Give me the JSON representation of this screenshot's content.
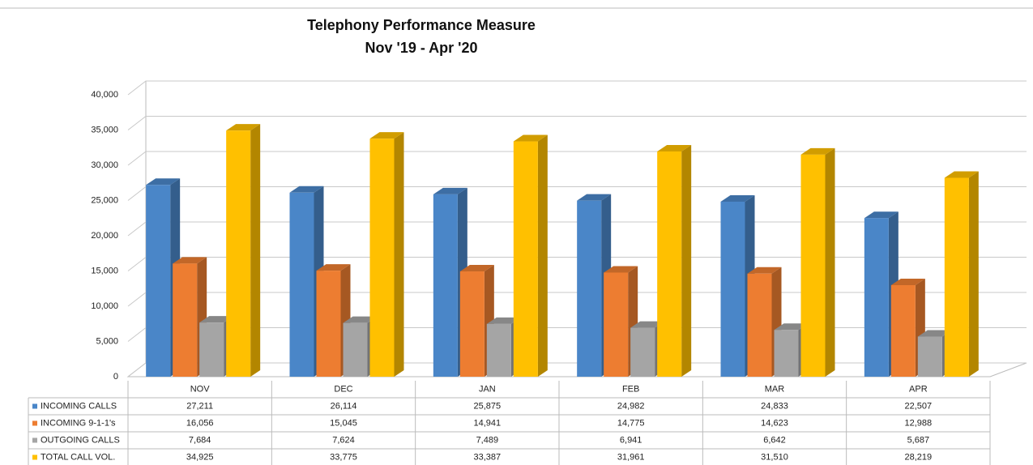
{
  "chart_data": {
    "type": "bar3d",
    "title": "Telephony Performance Measure",
    "subtitle": "Nov '19 - Apr '20",
    "categories": [
      "NOV",
      "DEC",
      "JAN",
      "FEB",
      "MAR",
      "APR"
    ],
    "series": [
      {
        "name": "INCOMING CALLS",
        "color": "#4a86c8",
        "values": [
          27211,
          26114,
          25875,
          24982,
          24833,
          22507
        ],
        "value_labels": [
          "27,211",
          "26,114",
          "25,875",
          "24,982",
          "24,833",
          "22,507"
        ]
      },
      {
        "name": "INCOMING 9-1-1's",
        "color": "#ed7d31",
        "values": [
          16056,
          15045,
          14941,
          14775,
          14623,
          12988
        ],
        "value_labels": [
          "16,056",
          "15,045",
          "14,941",
          "14,775",
          "14,623",
          "12,988"
        ]
      },
      {
        "name": "OUTGOING CALLS",
        "color": "#a5a5a5",
        "values": [
          7684,
          7624,
          7489,
          6941,
          6642,
          5687
        ],
        "value_labels": [
          "7,684",
          "7,624",
          "7,489",
          "6,941",
          "6,642",
          "5,687"
        ]
      },
      {
        "name": "TOTAL CALL VOL.",
        "color": "#ffc000",
        "values": [
          34925,
          33775,
          33387,
          31961,
          31510,
          28219
        ],
        "value_labels": [
          "34,925",
          "33,775",
          "33,387",
          "31,961",
          "31,510",
          "28,219"
        ]
      }
    ],
    "ylim": [
      0,
      40000
    ],
    "yticks": [
      0,
      {
        "value": 5000,
        "label": "5,000"
      },
      {
        "value": 10000,
        "label": "10,000"
      },
      {
        "value": 15000,
        "label": "15,000"
      },
      {
        "value": 20000,
        "label": "20,000"
      },
      {
        "value": 25000,
        "label": "25,000"
      },
      {
        "value": 30000,
        "label": "30,000"
      },
      {
        "value": 35000,
        "label": "35,000"
      },
      {
        "value": 40000,
        "label": "40,000"
      }
    ],
    "grid": true
  }
}
